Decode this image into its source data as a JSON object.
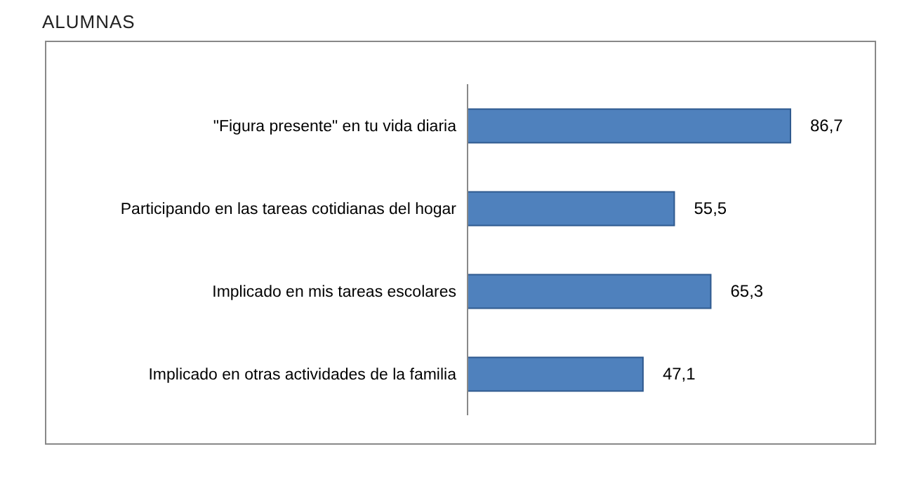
{
  "chart_data": {
    "type": "bar",
    "orientation": "horizontal",
    "title": "ALUMNAS",
    "categories": [
      "\"Figura presente\" en tu vida  diaria",
      "Participando en las tareas cotidianas del hogar",
      "Implicado en mis tareas escolares",
      "Implicado en otras actividades de la familia"
    ],
    "values": [
      86.7,
      55.5,
      65.3,
      47.1
    ],
    "value_labels": [
      "86,7",
      "55,5",
      "65,3",
      "47,1"
    ],
    "color": "#4f81bd",
    "grid": false,
    "legend": false
  }
}
